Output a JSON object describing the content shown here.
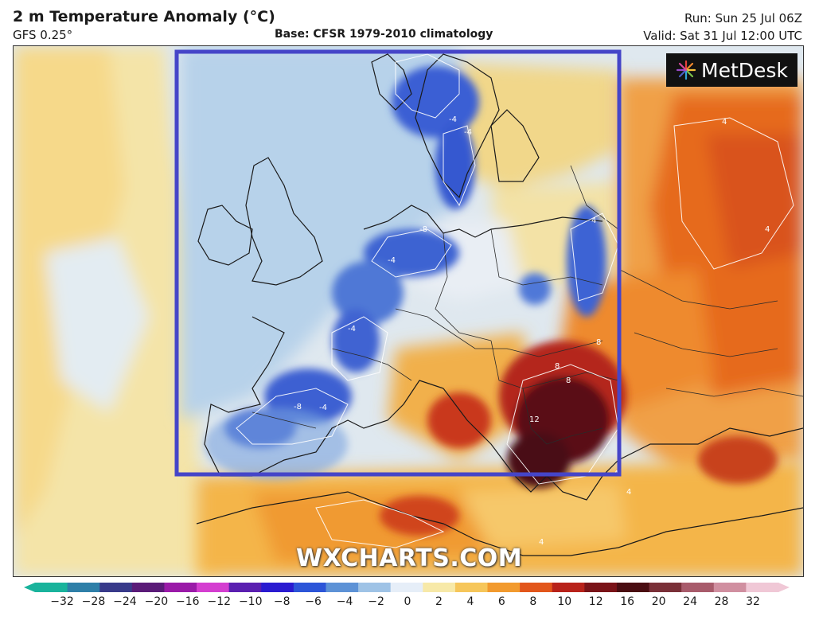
{
  "header": {
    "title": "2 m Temperature Anomaly (°C)",
    "model": "GFS 0.25°",
    "base": "Base: CFSR 1979-2010 climatology",
    "run": "Run: Sun 25 Jul 06Z",
    "valid": "Valid: Sat 31 Jul 12:00 UTC"
  },
  "logo": {
    "text": "MetDesk",
    "icon": "metdesk-burst-icon"
  },
  "watermark": "WXCHARTS.COM",
  "legend": {
    "ticks": [
      "−32",
      "−28",
      "−24",
      "−20",
      "−16",
      "−12",
      "−10",
      "−8",
      "−6",
      "−4",
      "−2",
      "0",
      "2",
      "4",
      "6",
      "8",
      "10",
      "12",
      "16",
      "20",
      "24",
      "28",
      "32"
    ],
    "colors": [
      "#19b39c",
      "#2e7fa8",
      "#383a8a",
      "#5a1b78",
      "#9a1aa8",
      "#d43ed0",
      "#5a1fb0",
      "#2a1bd0",
      "#2c55d8",
      "#5d92d6",
      "#9fc3e6",
      "#e6eef8",
      "#f7e9a8",
      "#f6c65a",
      "#f29a2e",
      "#e2561b",
      "#b8221a",
      "#7a1318",
      "#4a0d12",
      "#7a3038",
      "#a85b6b",
      "#d08fa0",
      "#f0c8d6"
    ]
  },
  "colors": {
    "highlight_box": "#4545c8",
    "cold": "#2c4fd0",
    "cool": "#a9c8e8",
    "neutral": "#dde7f0",
    "warm": "#f3c86a",
    "hot": "#e8641e",
    "very_hot": "#6a1218"
  },
  "contour_labels": [
    "-4",
    "-4",
    "-8",
    "-4",
    "-4",
    "-8",
    "-4",
    "4",
    "4",
    "8",
    "8",
    "8",
    "12",
    "4",
    "4",
    "4",
    "4"
  ]
}
